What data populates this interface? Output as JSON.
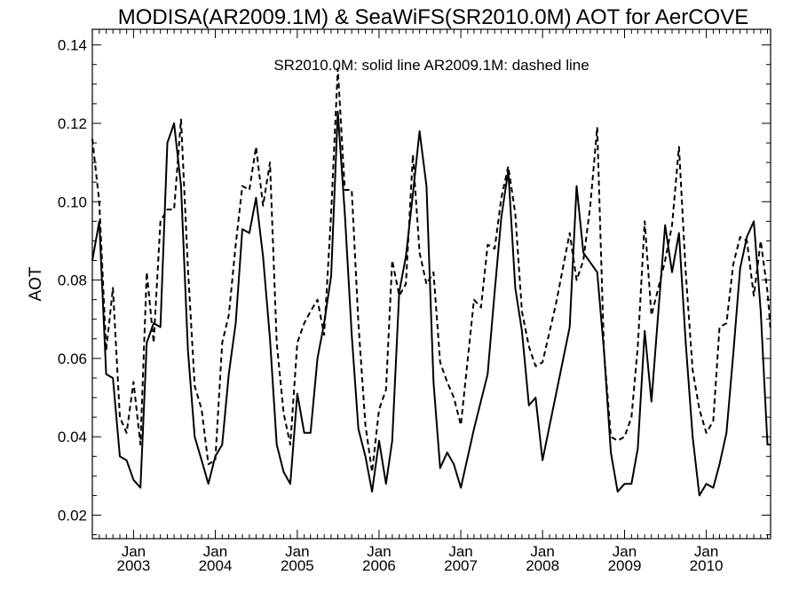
{
  "chart_data": {
    "type": "line",
    "title": "MODISA(AR2009.1M) & SeaWiFS(SR2010.0M)  AOT for AerCOVE",
    "ylabel": "AOT",
    "xlabel": "",
    "annotation": "SR2010.0M: solid line   AR2009.1M: dashed line",
    "ylim": [
      0.014,
      0.144
    ],
    "xlim": [
      "2002-07-01",
      "2010-10-15"
    ],
    "yticks": [
      {
        "value": 0.02,
        "label": "0.02"
      },
      {
        "value": 0.04,
        "label": "0.04"
      },
      {
        "value": 0.06,
        "label": "0.06"
      },
      {
        "value": 0.08,
        "label": "0.08"
      },
      {
        "value": 0.1,
        "label": "0.10"
      },
      {
        "value": 0.12,
        "label": "0.12"
      },
      {
        "value": 0.14,
        "label": "0.14"
      }
    ],
    "xticks": [
      {
        "date": "2003-01-01",
        "month": "Jan",
        "year": "2003"
      },
      {
        "date": "2004-01-01",
        "month": "Jan",
        "year": "2004"
      },
      {
        "date": "2005-01-01",
        "month": "Jan",
        "year": "2005"
      },
      {
        "date": "2006-01-01",
        "month": "Jan",
        "year": "2006"
      },
      {
        "date": "2007-01-01",
        "month": "Jan",
        "year": "2007"
      },
      {
        "date": "2008-01-01",
        "month": "Jan",
        "year": "2008"
      },
      {
        "date": "2009-01-01",
        "month": "Jan",
        "year": "2009"
      },
      {
        "date": "2010-01-01",
        "month": "Jan",
        "year": "2010"
      }
    ],
    "series": [
      {
        "style": "solid",
        "points": [
          [
            "2002-07-01",
            0.085
          ],
          [
            "2002-08-01",
            0.095
          ],
          [
            "2002-09-01",
            0.056
          ],
          [
            "2002-10-01",
            0.055
          ],
          [
            "2002-11-01",
            0.035
          ],
          [
            "2002-12-01",
            0.034
          ],
          [
            "2003-01-01",
            0.029
          ],
          [
            "2003-02-01",
            0.027
          ],
          [
            "2003-03-01",
            0.064
          ],
          [
            "2003-04-01",
            0.069
          ],
          [
            "2003-05-01",
            0.068
          ],
          [
            "2003-06-01",
            0.115
          ],
          [
            "2003-07-01",
            0.12
          ],
          [
            "2003-08-01",
            0.104
          ],
          [
            "2003-09-01",
            0.062
          ],
          [
            "2003-10-01",
            0.04
          ],
          [
            "2003-11-01",
            0.034
          ],
          [
            "2003-12-01",
            0.028
          ],
          [
            "2004-01-01",
            0.035
          ],
          [
            "2004-02-01",
            0.038
          ],
          [
            "2004-03-01",
            0.056
          ],
          [
            "2004-04-01",
            0.069
          ],
          [
            "2004-05-01",
            0.093
          ],
          [
            "2004-06-01",
            0.092
          ],
          [
            "2004-07-01",
            0.101
          ],
          [
            "2004-08-01",
            0.086
          ],
          [
            "2004-09-01",
            0.065
          ],
          [
            "2004-10-01",
            0.038
          ],
          [
            "2004-11-01",
            0.031
          ],
          [
            "2004-12-01",
            0.028
          ],
          [
            "2005-01-01",
            0.051
          ],
          [
            "2005-02-01",
            0.041
          ],
          [
            "2005-03-01",
            0.041
          ],
          [
            "2005-04-01",
            0.06
          ],
          [
            "2005-05-01",
            0.069
          ],
          [
            "2005-06-01",
            0.081
          ],
          [
            "2005-07-01",
            0.123
          ],
          [
            "2005-08-01",
            0.097
          ],
          [
            "2005-09-01",
            0.066
          ],
          [
            "2005-10-01",
            0.042
          ],
          [
            "2005-11-01",
            0.035
          ],
          [
            "2005-12-01",
            0.026
          ],
          [
            "2006-01-01",
            0.039
          ],
          [
            "2006-02-01",
            0.028
          ],
          [
            "2006-03-01",
            0.039
          ],
          [
            "2006-04-01",
            0.077
          ],
          [
            "2006-05-01",
            0.086
          ],
          [
            "2006-06-01",
            0.102
          ],
          [
            "2006-07-01",
            0.118
          ],
          [
            "2006-08-01",
            0.104
          ],
          [
            "2006-09-01",
            0.054
          ],
          [
            "2006-10-01",
            0.032
          ],
          [
            "2006-11-01",
            0.036
          ],
          [
            "2006-12-01",
            0.033
          ],
          [
            "2007-01-01",
            0.027
          ],
          [
            "2007-03-01",
            0.042
          ],
          [
            "2007-05-01",
            0.056
          ],
          [
            "2007-06-01",
            0.077
          ],
          [
            "2007-07-01",
            0.096
          ],
          [
            "2007-08-01",
            0.108
          ],
          [
            "2007-09-01",
            0.078
          ],
          [
            "2007-10-01",
            0.067
          ],
          [
            "2007-11-01",
            0.048
          ],
          [
            "2007-12-01",
            0.05
          ],
          [
            "2008-01-01",
            0.034
          ],
          [
            "2008-05-01",
            0.068
          ],
          [
            "2008-06-01",
            0.104
          ],
          [
            "2008-07-01",
            0.087
          ],
          [
            "2008-09-01",
            0.082
          ],
          [
            "2008-10-01",
            0.062
          ],
          [
            "2008-11-01",
            0.036
          ],
          [
            "2008-12-01",
            0.026
          ],
          [
            "2009-01-01",
            0.028
          ],
          [
            "2009-02-01",
            0.028
          ],
          [
            "2009-03-01",
            0.037
          ],
          [
            "2009-04-01",
            0.067
          ],
          [
            "2009-05-01",
            0.049
          ],
          [
            "2009-06-01",
            0.072
          ],
          [
            "2009-07-01",
            0.094
          ],
          [
            "2009-08-01",
            0.082
          ],
          [
            "2009-09-01",
            0.092
          ],
          [
            "2009-10-01",
            0.064
          ],
          [
            "2009-11-01",
            0.04
          ],
          [
            "2009-12-01",
            0.025
          ],
          [
            "2010-01-01",
            0.028
          ],
          [
            "2010-02-01",
            0.027
          ],
          [
            "2010-03-01",
            0.033
          ],
          [
            "2010-04-01",
            0.041
          ],
          [
            "2010-05-01",
            0.061
          ],
          [
            "2010-06-01",
            0.083
          ],
          [
            "2010-07-01",
            0.091
          ],
          [
            "2010-08-01",
            0.095
          ],
          [
            "2010-09-01",
            0.072
          ],
          [
            "2010-10-01",
            0.038
          ],
          [
            "2010-10-15",
            0.038
          ]
        ]
      },
      {
        "style": "dashed",
        "points": [
          [
            "2002-07-01",
            0.116
          ],
          [
            "2002-08-01",
            0.1
          ],
          [
            "2002-09-01",
            0.062
          ],
          [
            "2002-10-01",
            0.078
          ],
          [
            "2002-11-01",
            0.045
          ],
          [
            "2002-12-01",
            0.041
          ],
          [
            "2003-01-01",
            0.054
          ],
          [
            "2003-02-01",
            0.038
          ],
          [
            "2003-03-01",
            0.082
          ],
          [
            "2003-04-01",
            0.064
          ],
          [
            "2003-05-01",
            0.095
          ],
          [
            "2003-06-01",
            0.098
          ],
          [
            "2003-07-01",
            0.098
          ],
          [
            "2003-08-01",
            0.121
          ],
          [
            "2003-09-01",
            0.083
          ],
          [
            "2003-10-01",
            0.053
          ],
          [
            "2003-11-01",
            0.047
          ],
          [
            "2003-12-01",
            0.033
          ],
          [
            "2004-01-01",
            0.034
          ],
          [
            "2004-02-01",
            0.064
          ],
          [
            "2004-03-01",
            0.071
          ],
          [
            "2004-04-01",
            0.089
          ],
          [
            "2004-05-01",
            0.104
          ],
          [
            "2004-06-01",
            0.103
          ],
          [
            "2004-07-01",
            0.114
          ],
          [
            "2004-08-01",
            0.099
          ],
          [
            "2004-09-01",
            0.11
          ],
          [
            "2004-10-01",
            0.064
          ],
          [
            "2004-11-01",
            0.046
          ],
          [
            "2004-12-01",
            0.038
          ],
          [
            "2005-01-01",
            0.064
          ],
          [
            "2005-02-01",
            0.069
          ],
          [
            "2005-03-01",
            0.072
          ],
          [
            "2005-04-01",
            0.075
          ],
          [
            "2005-05-01",
            0.066
          ],
          [
            "2005-06-01",
            0.097
          ],
          [
            "2005-07-01",
            0.134
          ],
          [
            "2005-08-01",
            0.103
          ],
          [
            "2005-09-01",
            0.103
          ],
          [
            "2005-10-01",
            0.069
          ],
          [
            "2005-11-01",
            0.043
          ],
          [
            "2005-12-01",
            0.031
          ],
          [
            "2006-01-01",
            0.047
          ],
          [
            "2006-02-01",
            0.052
          ],
          [
            "2006-03-01",
            0.085
          ],
          [
            "2006-04-01",
            0.076
          ],
          [
            "2006-05-01",
            0.079
          ],
          [
            "2006-06-01",
            0.112
          ],
          [
            "2006-07-01",
            0.087
          ],
          [
            "2006-08-01",
            0.079
          ],
          [
            "2006-09-01",
            0.082
          ],
          [
            "2006-10-01",
            0.059
          ],
          [
            "2006-11-01",
            0.054
          ],
          [
            "2006-12-01",
            0.05
          ],
          [
            "2007-01-01",
            0.043
          ],
          [
            "2007-03-01",
            0.075
          ],
          [
            "2007-04-01",
            0.073
          ],
          [
            "2007-05-01",
            0.089
          ],
          [
            "2007-06-01",
            0.088
          ],
          [
            "2007-07-01",
            0.101
          ],
          [
            "2007-08-01",
            0.109
          ],
          [
            "2007-09-01",
            0.097
          ],
          [
            "2007-10-01",
            0.072
          ],
          [
            "2007-11-01",
            0.063
          ],
          [
            "2007-12-01",
            0.058
          ],
          [
            "2008-01-01",
            0.059
          ],
          [
            "2008-03-01",
            0.074
          ],
          [
            "2008-05-01",
            0.092
          ],
          [
            "2008-06-01",
            0.08
          ],
          [
            "2008-07-01",
            0.085
          ],
          [
            "2008-08-01",
            0.099
          ],
          [
            "2008-09-01",
            0.119
          ],
          [
            "2008-10-01",
            0.062
          ],
          [
            "2008-11-01",
            0.04
          ],
          [
            "2008-12-01",
            0.039
          ],
          [
            "2009-01-01",
            0.04
          ],
          [
            "2009-02-01",
            0.045
          ],
          [
            "2009-03-01",
            0.063
          ],
          [
            "2009-04-01",
            0.095
          ],
          [
            "2009-05-01",
            0.071
          ],
          [
            "2009-06-01",
            0.078
          ],
          [
            "2009-07-01",
            0.085
          ],
          [
            "2009-08-01",
            0.094
          ],
          [
            "2009-09-01",
            0.114
          ],
          [
            "2009-10-01",
            0.082
          ],
          [
            "2009-11-01",
            0.057
          ],
          [
            "2009-12-01",
            0.047
          ],
          [
            "2010-01-01",
            0.041
          ],
          [
            "2010-02-01",
            0.044
          ],
          [
            "2010-03-01",
            0.068
          ],
          [
            "2010-04-01",
            0.069
          ],
          [
            "2010-05-01",
            0.084
          ],
          [
            "2010-06-01",
            0.091
          ],
          [
            "2010-07-01",
            0.09
          ],
          [
            "2010-08-01",
            0.076
          ],
          [
            "2010-09-01",
            0.09
          ],
          [
            "2010-10-01",
            0.077
          ],
          [
            "2010-10-15",
            0.067
          ]
        ]
      }
    ]
  }
}
